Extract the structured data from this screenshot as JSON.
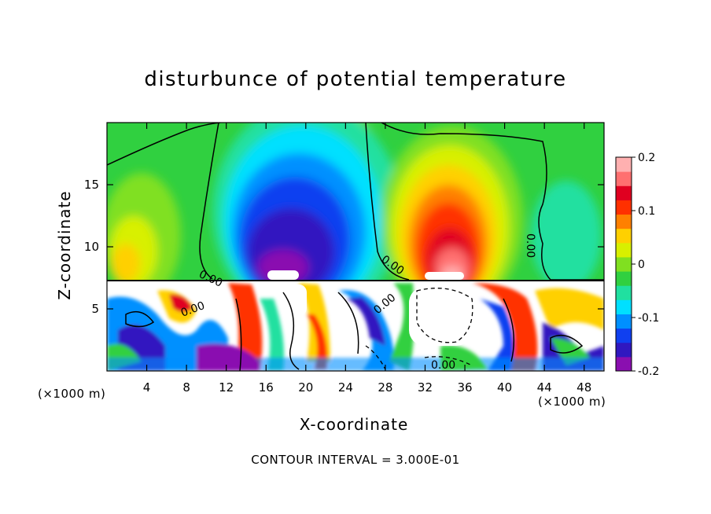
{
  "chart_data": {
    "type": "heatmap",
    "title": "disturbunce of potential temperature",
    "xlabel": "X-coordinate",
    "ylabel": "Z-coordinate",
    "x_unit_left": "(×1000 m)",
    "x_unit_right": "(×1000 m)",
    "footer": "CONTOUR INTERVAL = 3.000E-01",
    "xlim": [
      0,
      50
    ],
    "ylim": [
      0,
      20
    ],
    "xticks": [
      "4",
      "8",
      "12",
      "16",
      "20",
      "24",
      "28",
      "32",
      "36",
      "40",
      "44",
      "48"
    ],
    "yticks": [
      "5",
      "10",
      "15"
    ],
    "colorbar": {
      "range": [
        -0.2,
        0.2
      ],
      "ticks": [
        "0.2",
        "0.1",
        "0",
        "-0.1",
        "-0.2"
      ],
      "colors": [
        "#8a0fb0",
        "#3018c0",
        "#1040f0",
        "#0090ff",
        "#00e0ff",
        "#20e0a0",
        "#30d040",
        "#80e020",
        "#d8f000",
        "#ffd000",
        "#ff8000",
        "#ff3000",
        "#e00020",
        "#ff7070",
        "#ffb0b0"
      ]
    },
    "contour_labels": [
      "0.00",
      "0.00",
      "0.00",
      "0.00",
      "0.00",
      "0.00"
    ],
    "features": [
      {
        "name": "cold anomaly",
        "x_center": 18,
        "z_center": 10,
        "value": -0.2
      },
      {
        "name": "warm anomaly",
        "x_center": 34,
        "z_center": 10,
        "value": 0.2
      }
    ]
  }
}
